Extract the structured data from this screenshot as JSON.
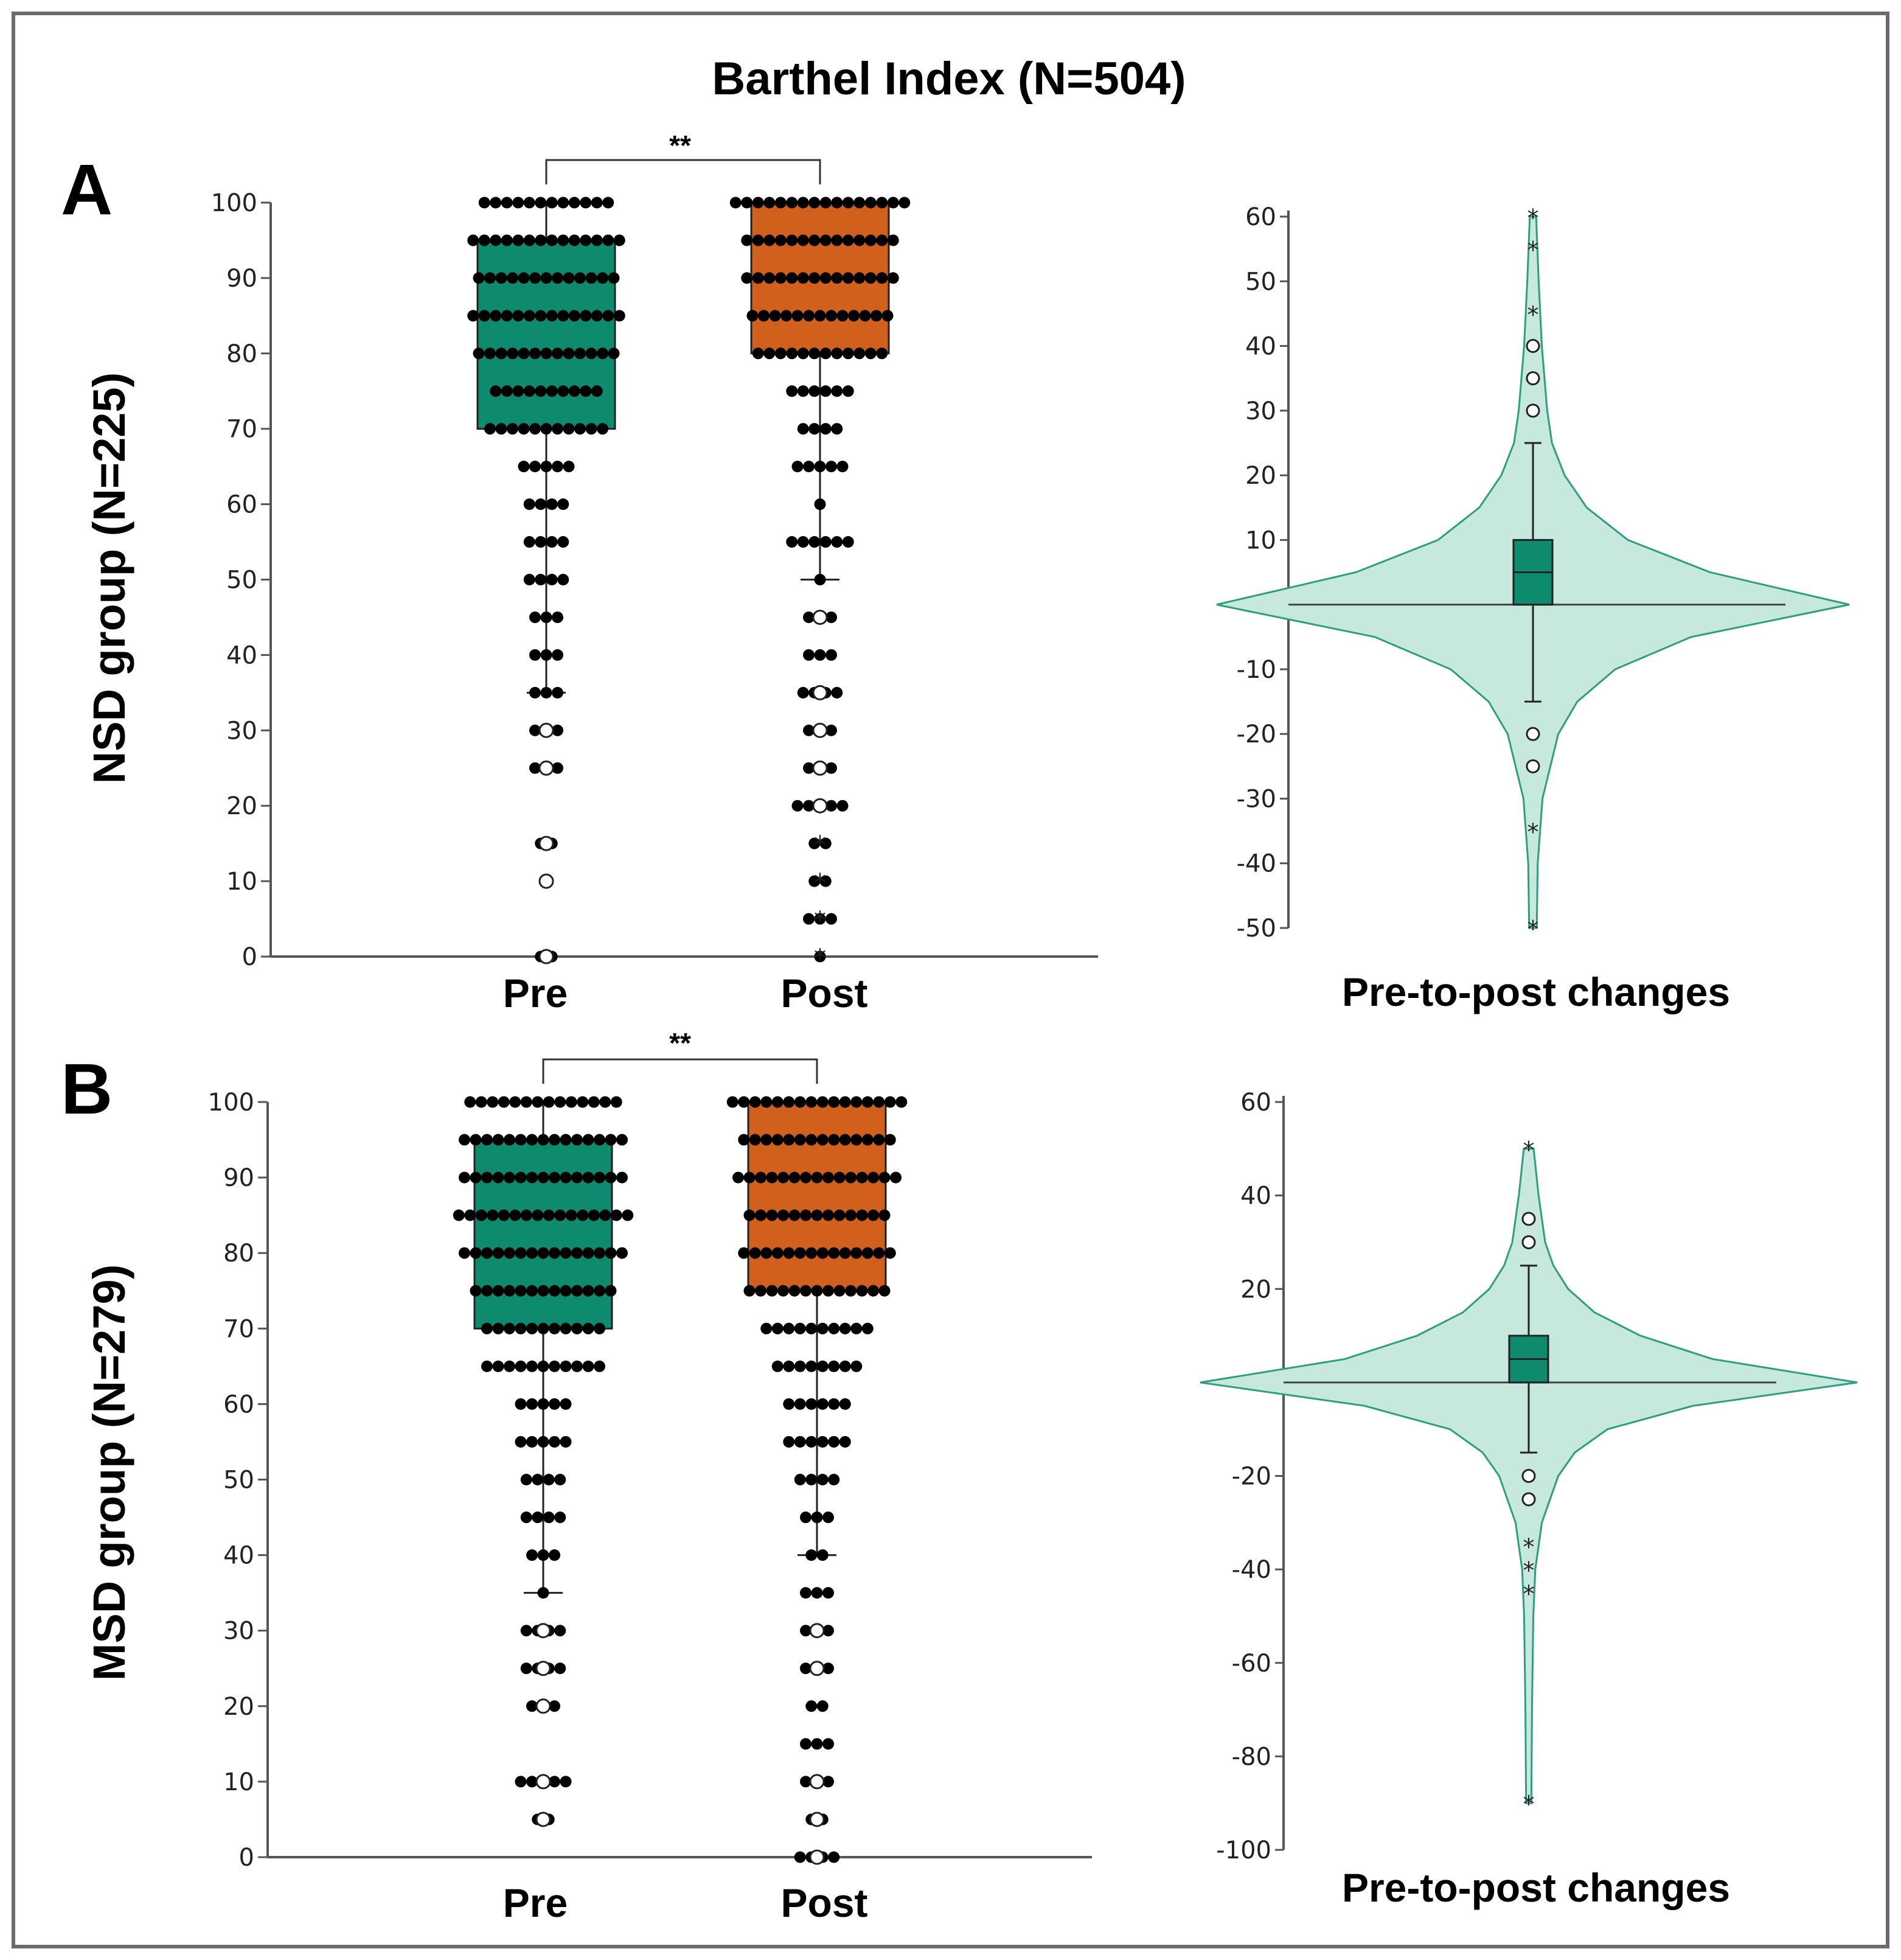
{
  "figure": {
    "title": "Barthel Index (N=504)",
    "colors": {
      "pre": "#0e8a6e",
      "post": "#d2601d",
      "violin_fill": "#c7e8dc",
      "violin_line": "#2e9e80",
      "dot": "#000000",
      "axis": "#555555"
    }
  },
  "chart_data": [
    {
      "type": "box",
      "panel": "A",
      "ylabel": "NSD group (N=225)",
      "categories": [
        "Pre",
        "Post"
      ],
      "ylim": [
        0,
        100
      ],
      "yticks": [
        0,
        10,
        20,
        30,
        40,
        50,
        60,
        70,
        80,
        90,
        100
      ],
      "significance": "**",
      "boxes": [
        {
          "name": "Pre",
          "q1": 70,
          "median": 85,
          "q3": 95,
          "whisker_low": 35,
          "whisker_high": 100,
          "dots": [
            [
              100,
              12
            ],
            [
              95,
              14
            ],
            [
              90,
              13
            ],
            [
              85,
              14
            ],
            [
              80,
              13
            ],
            [
              75,
              10
            ],
            [
              70,
              11
            ],
            [
              65,
              5
            ],
            [
              60,
              4
            ],
            [
              55,
              4
            ],
            [
              50,
              4
            ],
            [
              45,
              3
            ],
            [
              40,
              3
            ],
            [
              35,
              3
            ],
            [
              30,
              3
            ],
            [
              25,
              3
            ],
            [
              15,
              2
            ],
            [
              10,
              1
            ],
            [
              0,
              2
            ]
          ],
          "outliers": [
            [
              30,
              "o"
            ],
            [
              25,
              "o"
            ],
            [
              15,
              "o"
            ],
            [
              10,
              "o"
            ],
            [
              0,
              "o"
            ]
          ]
        },
        {
          "name": "Post",
          "q1": 80,
          "median": 90,
          "q3": 100,
          "whisker_low": 50,
          "whisker_high": 100,
          "dots": [
            [
              100,
              16
            ],
            [
              95,
              14
            ],
            [
              90,
              14
            ],
            [
              85,
              13
            ],
            [
              80,
              12
            ],
            [
              75,
              6
            ],
            [
              70,
              4
            ],
            [
              65,
              5
            ],
            [
              60,
              1
            ],
            [
              55,
              6
            ],
            [
              50,
              1
            ],
            [
              45,
              3
            ],
            [
              40,
              3
            ],
            [
              35,
              4
            ],
            [
              30,
              3
            ],
            [
              25,
              3
            ],
            [
              20,
              5
            ],
            [
              15,
              2
            ],
            [
              10,
              2
            ],
            [
              5,
              3
            ],
            [
              0,
              1
            ]
          ],
          "outliers": [
            [
              45,
              "o"
            ],
            [
              35,
              "o"
            ],
            [
              30,
              "o"
            ],
            [
              25,
              "o"
            ],
            [
              20,
              "o"
            ],
            [
              15,
              "*"
            ],
            [
              10,
              "*"
            ],
            [
              5,
              "*"
            ],
            [
              0,
              "*"
            ]
          ]
        }
      ]
    },
    {
      "type": "violin",
      "panel": "A",
      "xlabel": "Pre-to-post changes",
      "ylim": [
        -50,
        60
      ],
      "yticks": [
        -50,
        -40,
        -30,
        -20,
        -10,
        10,
        20,
        30,
        40,
        50,
        60
      ],
      "box": {
        "q1": 0,
        "median": 5,
        "q3": 10,
        "whisker_low": -15,
        "whisker_high": 25
      },
      "density": [
        [
          -50,
          0.012
        ],
        [
          -40,
          0.015
        ],
        [
          -30,
          0.03
        ],
        [
          -20,
          0.08
        ],
        [
          -15,
          0.14
        ],
        [
          -10,
          0.26
        ],
        [
          -5,
          0.5
        ],
        [
          0,
          1.0
        ],
        [
          5,
          0.56
        ],
        [
          10,
          0.3
        ],
        [
          15,
          0.17
        ],
        [
          20,
          0.1
        ],
        [
          25,
          0.06
        ],
        [
          30,
          0.045
        ],
        [
          40,
          0.028
        ],
        [
          50,
          0.018
        ],
        [
          60,
          0.01
        ]
      ],
      "outliers": [
        [
          60,
          "*"
        ],
        [
          55,
          "*"
        ],
        [
          45,
          "*"
        ],
        [
          40,
          "o"
        ],
        [
          35,
          "o"
        ],
        [
          30,
          "o"
        ],
        [
          -20,
          "o"
        ],
        [
          -25,
          "o"
        ],
        [
          -35,
          "*"
        ],
        [
          -50,
          "*"
        ]
      ]
    },
    {
      "type": "box",
      "panel": "B",
      "ylabel": "MSD group (N=279)",
      "categories": [
        "Pre",
        "Post"
      ],
      "ylim": [
        0,
        100
      ],
      "yticks": [
        0,
        10,
        20,
        30,
        40,
        50,
        60,
        70,
        80,
        90,
        100
      ],
      "significance": "**",
      "boxes": [
        {
          "name": "Pre",
          "q1": 70,
          "median": 85,
          "q3": 95,
          "whisker_low": 35,
          "whisker_high": 100,
          "dots": [
            [
              100,
              14
            ],
            [
              95,
              15
            ],
            [
              90,
              15
            ],
            [
              85,
              16
            ],
            [
              80,
              15
            ],
            [
              75,
              13
            ],
            [
              70,
              11
            ],
            [
              65,
              11
            ],
            [
              60,
              5
            ],
            [
              55,
              5
            ],
            [
              50,
              4
            ],
            [
              45,
              4
            ],
            [
              40,
              3
            ],
            [
              35,
              1
            ],
            [
              30,
              4
            ],
            [
              25,
              4
            ],
            [
              20,
              3
            ],
            [
              10,
              5
            ],
            [
              5,
              2
            ]
          ],
          "outliers": [
            [
              30,
              "o"
            ],
            [
              25,
              "o"
            ],
            [
              20,
              "o"
            ],
            [
              10,
              "o"
            ],
            [
              5,
              "o"
            ]
          ]
        },
        {
          "name": "Post",
          "q1": 75,
          "median": 90,
          "q3": 100,
          "whisker_low": 40,
          "whisker_high": 100,
          "dots": [
            [
              100,
              16
            ],
            [
              95,
              14
            ],
            [
              90,
              15
            ],
            [
              85,
              13
            ],
            [
              80,
              14
            ],
            [
              75,
              13
            ],
            [
              70,
              10
            ],
            [
              65,
              8
            ],
            [
              60,
              6
            ],
            [
              55,
              6
            ],
            [
              50,
              4
            ],
            [
              45,
              3
            ],
            [
              40,
              2
            ],
            [
              35,
              3
            ],
            [
              30,
              3
            ],
            [
              25,
              3
            ],
            [
              20,
              2
            ],
            [
              15,
              3
            ],
            [
              10,
              3
            ],
            [
              5,
              2
            ],
            [
              0,
              4
            ]
          ],
          "outliers": [
            [
              30,
              "o"
            ],
            [
              25,
              "o"
            ],
            [
              10,
              "o"
            ],
            [
              5,
              "o"
            ],
            [
              0,
              "o"
            ]
          ]
        }
      ]
    },
    {
      "type": "violin",
      "panel": "B",
      "xlabel": "Pre-to-post changes",
      "ylim": [
        -100,
        60
      ],
      "yticks": [
        -100,
        -80,
        -60,
        -40,
        -20,
        20,
        40,
        60
      ],
      "box": {
        "q1": 0,
        "median": 5,
        "q3": 10,
        "whisker_low": -15,
        "whisker_high": 25
      },
      "density": [
        [
          -90,
          0.008
        ],
        [
          -70,
          0.01
        ],
        [
          -50,
          0.014
        ],
        [
          -40,
          0.02
        ],
        [
          -30,
          0.04
        ],
        [
          -20,
          0.09
        ],
        [
          -15,
          0.14
        ],
        [
          -10,
          0.24
        ],
        [
          -5,
          0.5
        ],
        [
          0,
          1.0
        ],
        [
          5,
          0.56
        ],
        [
          10,
          0.34
        ],
        [
          15,
          0.2
        ],
        [
          20,
          0.12
        ],
        [
          25,
          0.075
        ],
        [
          30,
          0.05
        ],
        [
          40,
          0.03
        ],
        [
          50,
          0.015
        ]
      ],
      "outliers": [
        [
          50,
          "*"
        ],
        [
          35,
          "o"
        ],
        [
          30,
          "o"
        ],
        [
          -20,
          "o"
        ],
        [
          -25,
          "o"
        ],
        [
          -35,
          "*"
        ],
        [
          -40,
          "*"
        ],
        [
          -45,
          "*"
        ],
        [
          -90,
          "*"
        ]
      ]
    }
  ]
}
